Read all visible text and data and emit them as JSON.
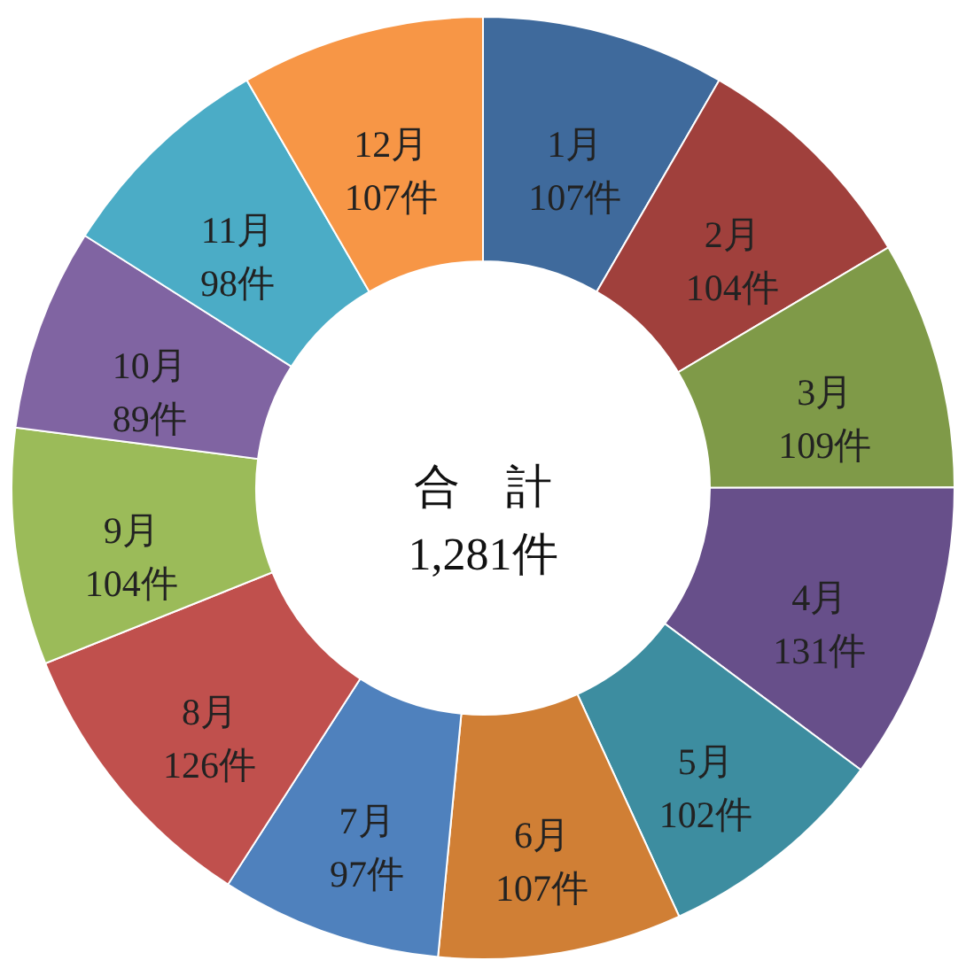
{
  "chart_data": {
    "type": "donut",
    "categories": [
      "1月",
      "2月",
      "3月",
      "4月",
      "5月",
      "6月",
      "7月",
      "8月",
      "9月",
      "10月",
      "11月",
      "12月"
    ],
    "values": [
      107,
      104,
      109,
      131,
      102,
      107,
      97,
      126,
      104,
      89,
      98,
      107
    ],
    "value_labels": [
      "107件",
      "104件",
      "109件",
      "131件",
      "102件",
      "107件",
      "97件",
      "126件",
      "104件",
      "89件",
      "98件",
      "107件"
    ],
    "colors": [
      "#3f6a9c",
      "#a0403c",
      "#7f9a48",
      "#674f8a",
      "#3d8da0",
      "#d07f35",
      "#4f81bd",
      "#c0504d",
      "#9bbb59",
      "#8064a2",
      "#4bacc6",
      "#f79646"
    ],
    "annotations": [
      "合　計",
      "1,281件"
    ],
    "legend": false
  }
}
